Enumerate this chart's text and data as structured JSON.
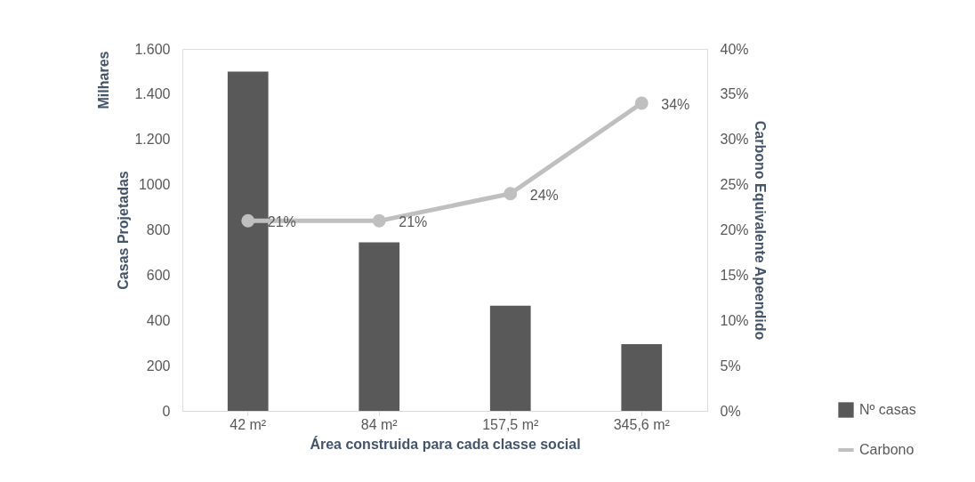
{
  "chart_data": {
    "type": "bar",
    "xlabel": "Área construida para cada classe social",
    "ylabel": "Casas Projetadas",
    "y2label": "Carbono Equivalente Apeendido",
    "annotations": [
      "Milhares"
    ],
    "categories": [
      "42 m²",
      "84 m²",
      "157,5 m²",
      "345,6 m²"
    ],
    "series": [
      {
        "name": "Nº casas",
        "color": "#595959",
        "values": [
          1500,
          745,
          465,
          295
        ]
      },
      {
        "name": "Carbono",
        "type": "line",
        "axis": "y2",
        "color": "#bfbfbf",
        "marker": "circle",
        "line_style": "solid",
        "values": [
          21,
          21,
          24,
          34
        ],
        "value_labels": [
          "21%",
          "21%",
          "24%",
          "34%"
        ]
      }
    ],
    "ylim": [
      0,
      1600
    ],
    "yticks": [
      0,
      200,
      400,
      600,
      800,
      1000,
      {
        "value": 1200,
        "label": "1.200"
      },
      {
        "value": 1400,
        "label": "1.400"
      },
      {
        "value": 1600,
        "label": "1.600"
      }
    ],
    "y2lim": [
      0,
      40
    ],
    "y2ticks": [
      {
        "value": 0,
        "label": "0%"
      },
      {
        "value": 5,
        "label": "5%"
      },
      {
        "value": 10,
        "label": "10%"
      },
      {
        "value": 15,
        "label": "15%"
      },
      {
        "value": 20,
        "label": "20%"
      },
      {
        "value": 25,
        "label": "25%"
      },
      {
        "value": 30,
        "label": "30%"
      },
      {
        "value": 35,
        "label": "35%"
      },
      {
        "value": 40,
        "label": "40%"
      }
    ],
    "grid": false,
    "legend": "bottom right"
  }
}
